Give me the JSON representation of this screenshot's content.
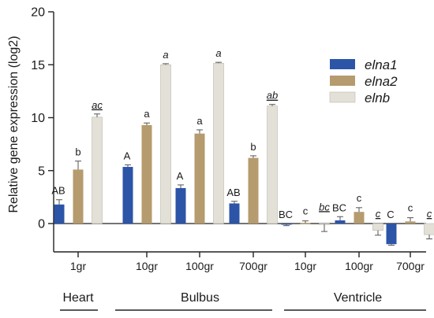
{
  "chart_data": {
    "type": "bar",
    "ylabel": "Relative gene expression (log2)",
    "ylim": [
      -3,
      20
    ],
    "yticks": [
      0,
      5,
      10,
      15,
      20
    ],
    "grid": false,
    "legend_position": "top-right",
    "categories": [
      "1gr",
      "10gr",
      "100gr",
      "700gr",
      "10gr",
      "100gr",
      "700gr"
    ],
    "groups": [
      {
        "label": "Heart",
        "from": 0,
        "to": 0
      },
      {
        "label": "Bulbus",
        "from": 1,
        "to": 3
      },
      {
        "label": "Ventricle",
        "from": 4,
        "to": 6
      }
    ],
    "series": [
      {
        "name": "elna1",
        "color": "#2c55a8",
        "values": [
          1.8,
          5.35,
          3.35,
          1.9,
          -0.1,
          0.3,
          -1.95
        ],
        "errors": [
          0.45,
          0.2,
          0.3,
          0.2,
          0.1,
          0.35,
          0.1
        ],
        "labels": [
          "AB",
          "A",
          "A",
          "AB",
          "BC",
          "BC",
          "C"
        ],
        "label_style": "plain"
      },
      {
        "name": "elna2",
        "color": "#b59b6e",
        "values": [
          5.1,
          9.3,
          8.5,
          6.2,
          0.05,
          1.1,
          0.2
        ],
        "errors": [
          0.8,
          0.2,
          0.35,
          0.2,
          0.2,
          0.4,
          0.35
        ],
        "labels": [
          "b",
          "a",
          "a",
          "b",
          "c",
          "c",
          "c"
        ],
        "label_style": "plain"
      },
      {
        "name": "elnb",
        "color": "#e3e0d8",
        "values": [
          10.05,
          15.0,
          15.15,
          11.1,
          -0.05,
          -0.65,
          -1.05
        ],
        "errors": [
          0.3,
          0.1,
          0.08,
          0.15,
          0.7,
          0.45,
          0.4
        ],
        "labels": [
          "ac",
          "a",
          "a",
          "ab",
          "bc",
          "c",
          "c"
        ],
        "label_style": [
          "italic-underline",
          "italic",
          "italic",
          "italic-underline",
          "italic-underline",
          "italic-underline",
          "italic-underline"
        ]
      }
    ]
  }
}
